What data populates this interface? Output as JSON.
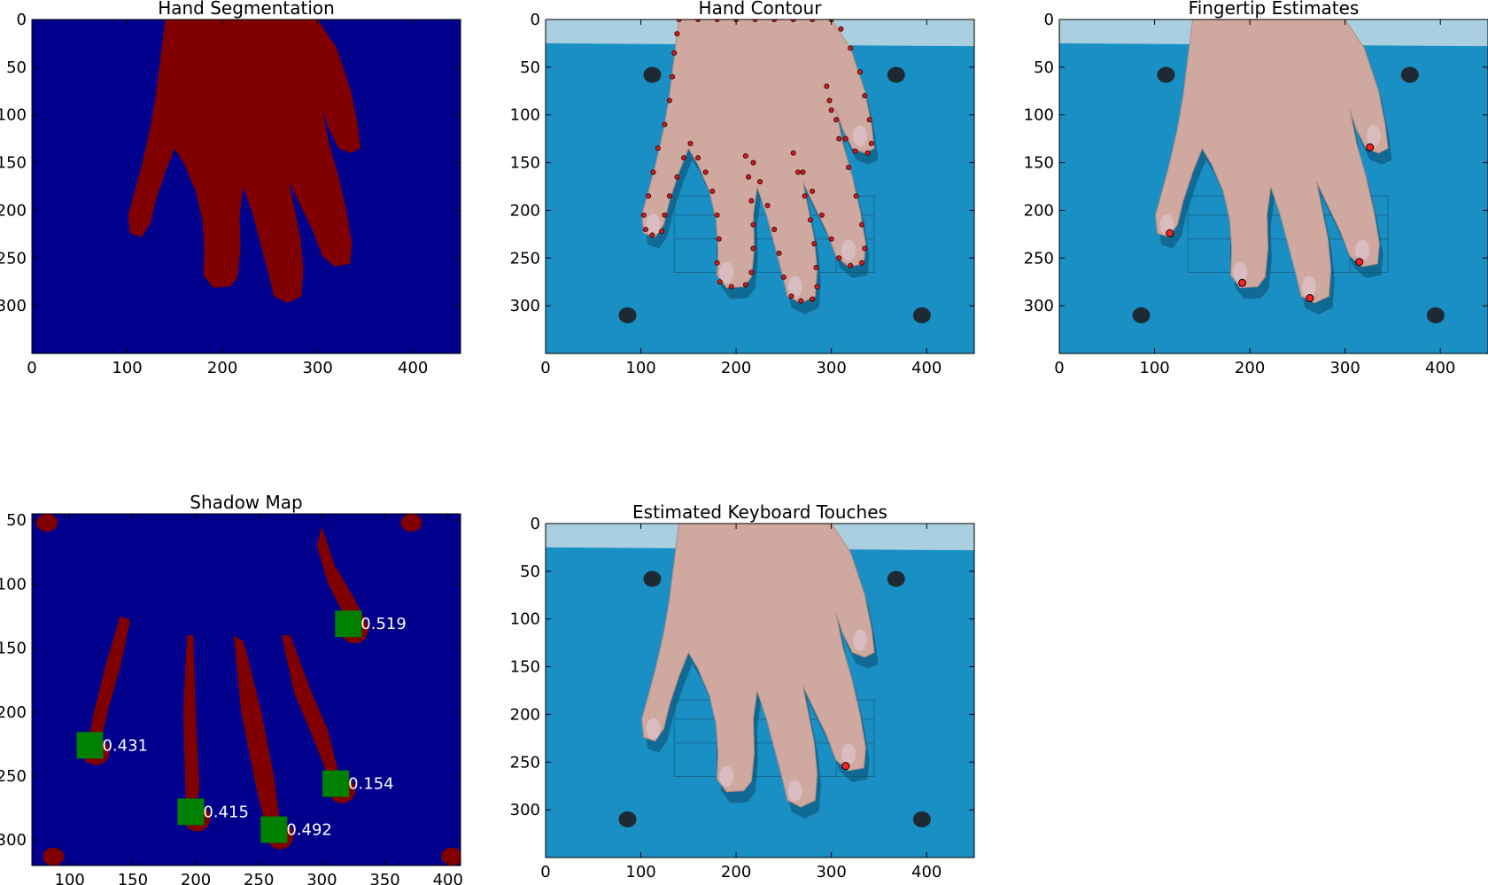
{
  "figure": {
    "background": "#ffffff",
    "colors": {
      "seg_background": "#00008c",
      "seg_hand": "#800000",
      "mat": "#1a8fc4",
      "mat_top": "#a9cfe0",
      "skin": "#cfa8a0",
      "contour_point": "#c81e1e",
      "fingertip_marker": "#ff2020",
      "touch_box": "#008000",
      "dot": "#1e2a33",
      "label_text": "#ffffff"
    }
  },
  "chart_data": [
    {
      "type": "image",
      "title": "Hand Segmentation",
      "xlim": [
        0,
        450
      ],
      "ylim": [
        350,
        0
      ],
      "xticks": [
        0,
        100,
        200,
        300,
        400
      ],
      "yticks": [
        0,
        50,
        100,
        150,
        200,
        250,
        300
      ],
      "content": "binary mask: hand region (dark red) on background (dark blue)"
    },
    {
      "type": "image",
      "title": "Hand Contour",
      "xlim": [
        0,
        450
      ],
      "ylim": [
        350,
        0
      ],
      "xticks": [
        0,
        100,
        200,
        300,
        400
      ],
      "yticks": [
        0,
        50,
        100,
        150,
        200,
        250,
        300
      ],
      "content": "photo of hand on blue mat with red contour points",
      "contour_points": [
        [
          140,
          0
        ],
        [
          160,
          0
        ],
        [
          180,
          0
        ],
        [
          200,
          0
        ],
        [
          220,
          0
        ],
        [
          240,
          0
        ],
        [
          260,
          0
        ],
        [
          280,
          0
        ],
        [
          300,
          0
        ],
        [
          310,
          10
        ],
        [
          320,
          30
        ],
        [
          330,
          55
        ],
        [
          335,
          80
        ],
        [
          340,
          105
        ],
        [
          342,
          130
        ],
        [
          338,
          140
        ],
        [
          325,
          138
        ],
        [
          315,
          125
        ],
        [
          305,
          105
        ],
        [
          298,
          85
        ],
        [
          295,
          70
        ],
        [
          300,
          95
        ],
        [
          308,
          125
        ],
        [
          318,
          155
        ],
        [
          326,
          185
        ],
        [
          332,
          215
        ],
        [
          335,
          240
        ],
        [
          332,
          255
        ],
        [
          320,
          258
        ],
        [
          308,
          250
        ],
        [
          300,
          230
        ],
        [
          290,
          205
        ],
        [
          280,
          180
        ],
        [
          270,
          160
        ],
        [
          260,
          140
        ],
        [
          265,
          160
        ],
        [
          272,
          185
        ],
        [
          278,
          210
        ],
        [
          282,
          235
        ],
        [
          284,
          260
        ],
        [
          285,
          280
        ],
        [
          280,
          293
        ],
        [
          268,
          295
        ],
        [
          258,
          290
        ],
        [
          250,
          270
        ],
        [
          245,
          245
        ],
        [
          240,
          220
        ],
        [
          233,
          195
        ],
        [
          225,
          170
        ],
        [
          218,
          150
        ],
        [
          210,
          143
        ],
        [
          213,
          165
        ],
        [
          216,
          190
        ],
        [
          218,
          215
        ],
        [
          218,
          240
        ],
        [
          216,
          265
        ],
        [
          210,
          278
        ],
        [
          195,
          280
        ],
        [
          183,
          275
        ],
        [
          180,
          255
        ],
        [
          182,
          230
        ],
        [
          180,
          205
        ],
        [
          175,
          180
        ],
        [
          168,
          160
        ],
        [
          160,
          145
        ],
        [
          152,
          130
        ],
        [
          145,
          145
        ],
        [
          138,
          165
        ],
        [
          130,
          185
        ],
        [
          125,
          205
        ],
        [
          122,
          222
        ],
        [
          112,
          226
        ],
        [
          105,
          220
        ],
        [
          103,
          205
        ],
        [
          108,
          185
        ],
        [
          113,
          160
        ],
        [
          118,
          135
        ],
        [
          125,
          110
        ],
        [
          130,
          85
        ],
        [
          133,
          60
        ],
        [
          135,
          35
        ],
        [
          138,
          15
        ]
      ]
    },
    {
      "type": "image",
      "title": "Fingertip Estimates",
      "xlim": [
        0,
        450
      ],
      "ylim": [
        350,
        0
      ],
      "xticks": [
        0,
        100,
        200,
        300,
        400
      ],
      "yticks": [
        0,
        50,
        100,
        150,
        200,
        250,
        300
      ],
      "content": "photo of hand with fingertip markers",
      "fingertips": [
        [
          116,
          224
        ],
        [
          192,
          276
        ],
        [
          263,
          292
        ],
        [
          315,
          254
        ],
        [
          326,
          134
        ]
      ]
    },
    {
      "type": "image",
      "title": "Shadow Map",
      "xlim": [
        70,
        410
      ],
      "ylim": [
        320,
        45
      ],
      "xticks": [
        100,
        150,
        200,
        250,
        300,
        350,
        400
      ],
      "yticks": [
        50,
        100,
        150,
        200,
        250,
        300
      ],
      "content": "shadow mask with touch-score boxes",
      "annotations": [
        {
          "x": 321,
          "y": 131,
          "label": "0.519"
        },
        {
          "x": 116,
          "y": 226,
          "label": "0.431"
        },
        {
          "x": 311,
          "y": 256,
          "label": "0.154"
        },
        {
          "x": 196,
          "y": 278,
          "label": "0.415"
        },
        {
          "x": 262,
          "y": 292,
          "label": "0.492"
        }
      ]
    },
    {
      "type": "image",
      "title": "Estimated Keyboard Touches",
      "xlim": [
        0,
        450
      ],
      "ylim": [
        350,
        0
      ],
      "xticks": [
        0,
        100,
        200,
        300,
        400
      ],
      "yticks": [
        0,
        50,
        100,
        150,
        200,
        250,
        300
      ],
      "content": "photo of hand with estimated touch point",
      "touches": [
        [
          315,
          254
        ]
      ]
    }
  ]
}
